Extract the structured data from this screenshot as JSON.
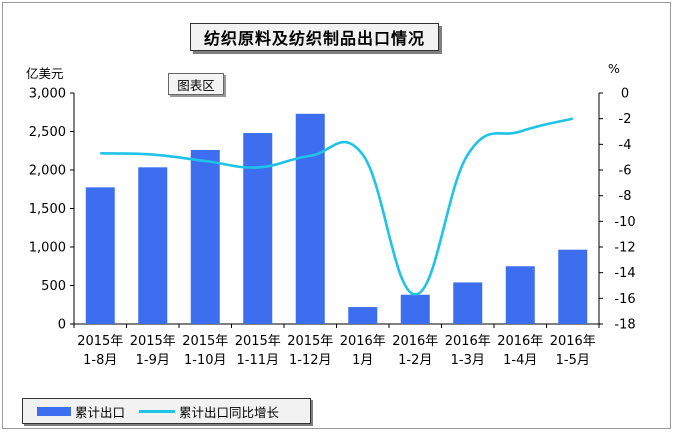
{
  "title": "纺织原料及纺织制品出口情况",
  "chip_label": "图表区",
  "chart_data": {
    "type": "bar",
    "categories": [
      [
        "2015年",
        "1-8月"
      ],
      [
        "2015年",
        "1-9月"
      ],
      [
        "2015年",
        "1-10月"
      ],
      [
        "2015年",
        "1-11月"
      ],
      [
        "2015年",
        "1-12月"
      ],
      [
        "2016年",
        "1月"
      ],
      [
        "2016年",
        "1-2月"
      ],
      [
        "2016年",
        "1-3月"
      ],
      [
        "2016年",
        "1-4月"
      ],
      [
        "2016年",
        "1-5月"
      ]
    ],
    "series": [
      {
        "name": "累计出口",
        "type": "bar",
        "axis": "left",
        "color": "#3d6ef0",
        "values": [
          1775,
          2035,
          2260,
          2480,
          2730,
          220,
          380,
          540,
          750,
          965
        ]
      },
      {
        "name": "累计出口同比增长",
        "type": "line",
        "axis": "right",
        "color": "#1ec3e6",
        "values": [
          -4.7,
          -4.8,
          -5.3,
          -5.8,
          -4.9,
          -4.8,
          -15.7,
          -4.8,
          -3.0,
          -2.0
        ]
      }
    ],
    "y_left": {
      "label": "亿美元",
      "min": 0,
      "max": 3000,
      "ticks": [
        0,
        500,
        1000,
        1500,
        2000,
        2500,
        3000
      ],
      "tick_labels": [
        "0",
        "500",
        "1,000",
        "1,500",
        "2,000",
        "2,500",
        "3,000"
      ]
    },
    "y_right": {
      "label": "%",
      "min": -18,
      "max": 0,
      "ticks": [
        0,
        -2,
        -4,
        -6,
        -8,
        -10,
        -12,
        -14,
        -16,
        -18
      ],
      "tick_labels": [
        "0",
        "-2",
        "-4",
        "-6",
        "-8",
        "-10",
        "-12",
        "-14",
        "-16",
        "-18"
      ]
    },
    "grid": false,
    "legend": "bottom-left"
  }
}
